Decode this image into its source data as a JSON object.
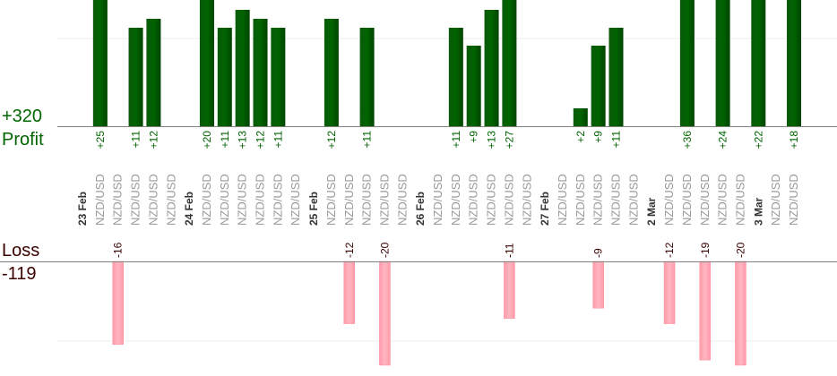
{
  "summary": {
    "profit_total": "+320",
    "profit_label": "Profit",
    "loss_label": "Loss",
    "loss_total": "-119"
  },
  "colors": {
    "profit": "#006400",
    "loss": "#ffb6c1",
    "date_text": "#333333",
    "symbol_text": "#999999",
    "loss_text": "#3a0000",
    "axis": "#808080",
    "grid": "#eeeeee"
  },
  "chart_data": {
    "type": "bar",
    "title": "",
    "xlabel": "",
    "ylabel": "",
    "grid": true,
    "categories": [
      "23 Feb",
      "NZD/USD",
      "NZD/USD",
      "NZD/USD",
      "NZD/USD",
      "NZD/USD",
      "24 Feb",
      "NZD/USD",
      "NZD/USD",
      "NZD/USD",
      "NZD/USD",
      "NZD/USD",
      "NZD/USD",
      "25 Feb",
      "NZD/USD",
      "NZD/USD",
      "NZD/USD",
      "NZD/USD",
      "NZD/USD",
      "26 Feb",
      "NZD/USD",
      "NZD/USD",
      "NZD/USD",
      "NZD/USD",
      "NZD/USD",
      "NZD/USD",
      "27 Feb",
      "NZD/USD",
      "NZD/USD",
      "NZD/USD",
      "NZD/USD",
      "NZD/USD",
      "2 Mar",
      "NZD/USD",
      "NZD/USD",
      "NZD/USD",
      "NZD/USD",
      "NZD/USD",
      "3 Mar",
      "NZD/USD",
      "NZD/USD"
    ],
    "series": [
      {
        "name": "Profit",
        "values": [
          null,
          25,
          null,
          11,
          12,
          null,
          null,
          20,
          11,
          13,
          12,
          11,
          null,
          null,
          12,
          null,
          11,
          null,
          null,
          null,
          null,
          11,
          9,
          13,
          27,
          null,
          null,
          null,
          2,
          9,
          11,
          null,
          null,
          null,
          36,
          null,
          24,
          null,
          22,
          null,
          18
        ]
      },
      {
        "name": "Loss",
        "values": [
          null,
          null,
          -16,
          null,
          null,
          null,
          null,
          null,
          null,
          null,
          null,
          null,
          null,
          null,
          null,
          -12,
          null,
          -20,
          null,
          null,
          null,
          null,
          null,
          null,
          -11,
          null,
          null,
          null,
          null,
          -9,
          null,
          null,
          null,
          -12,
          null,
          -19,
          null,
          -20,
          null,
          null,
          null
        ]
      }
    ]
  }
}
